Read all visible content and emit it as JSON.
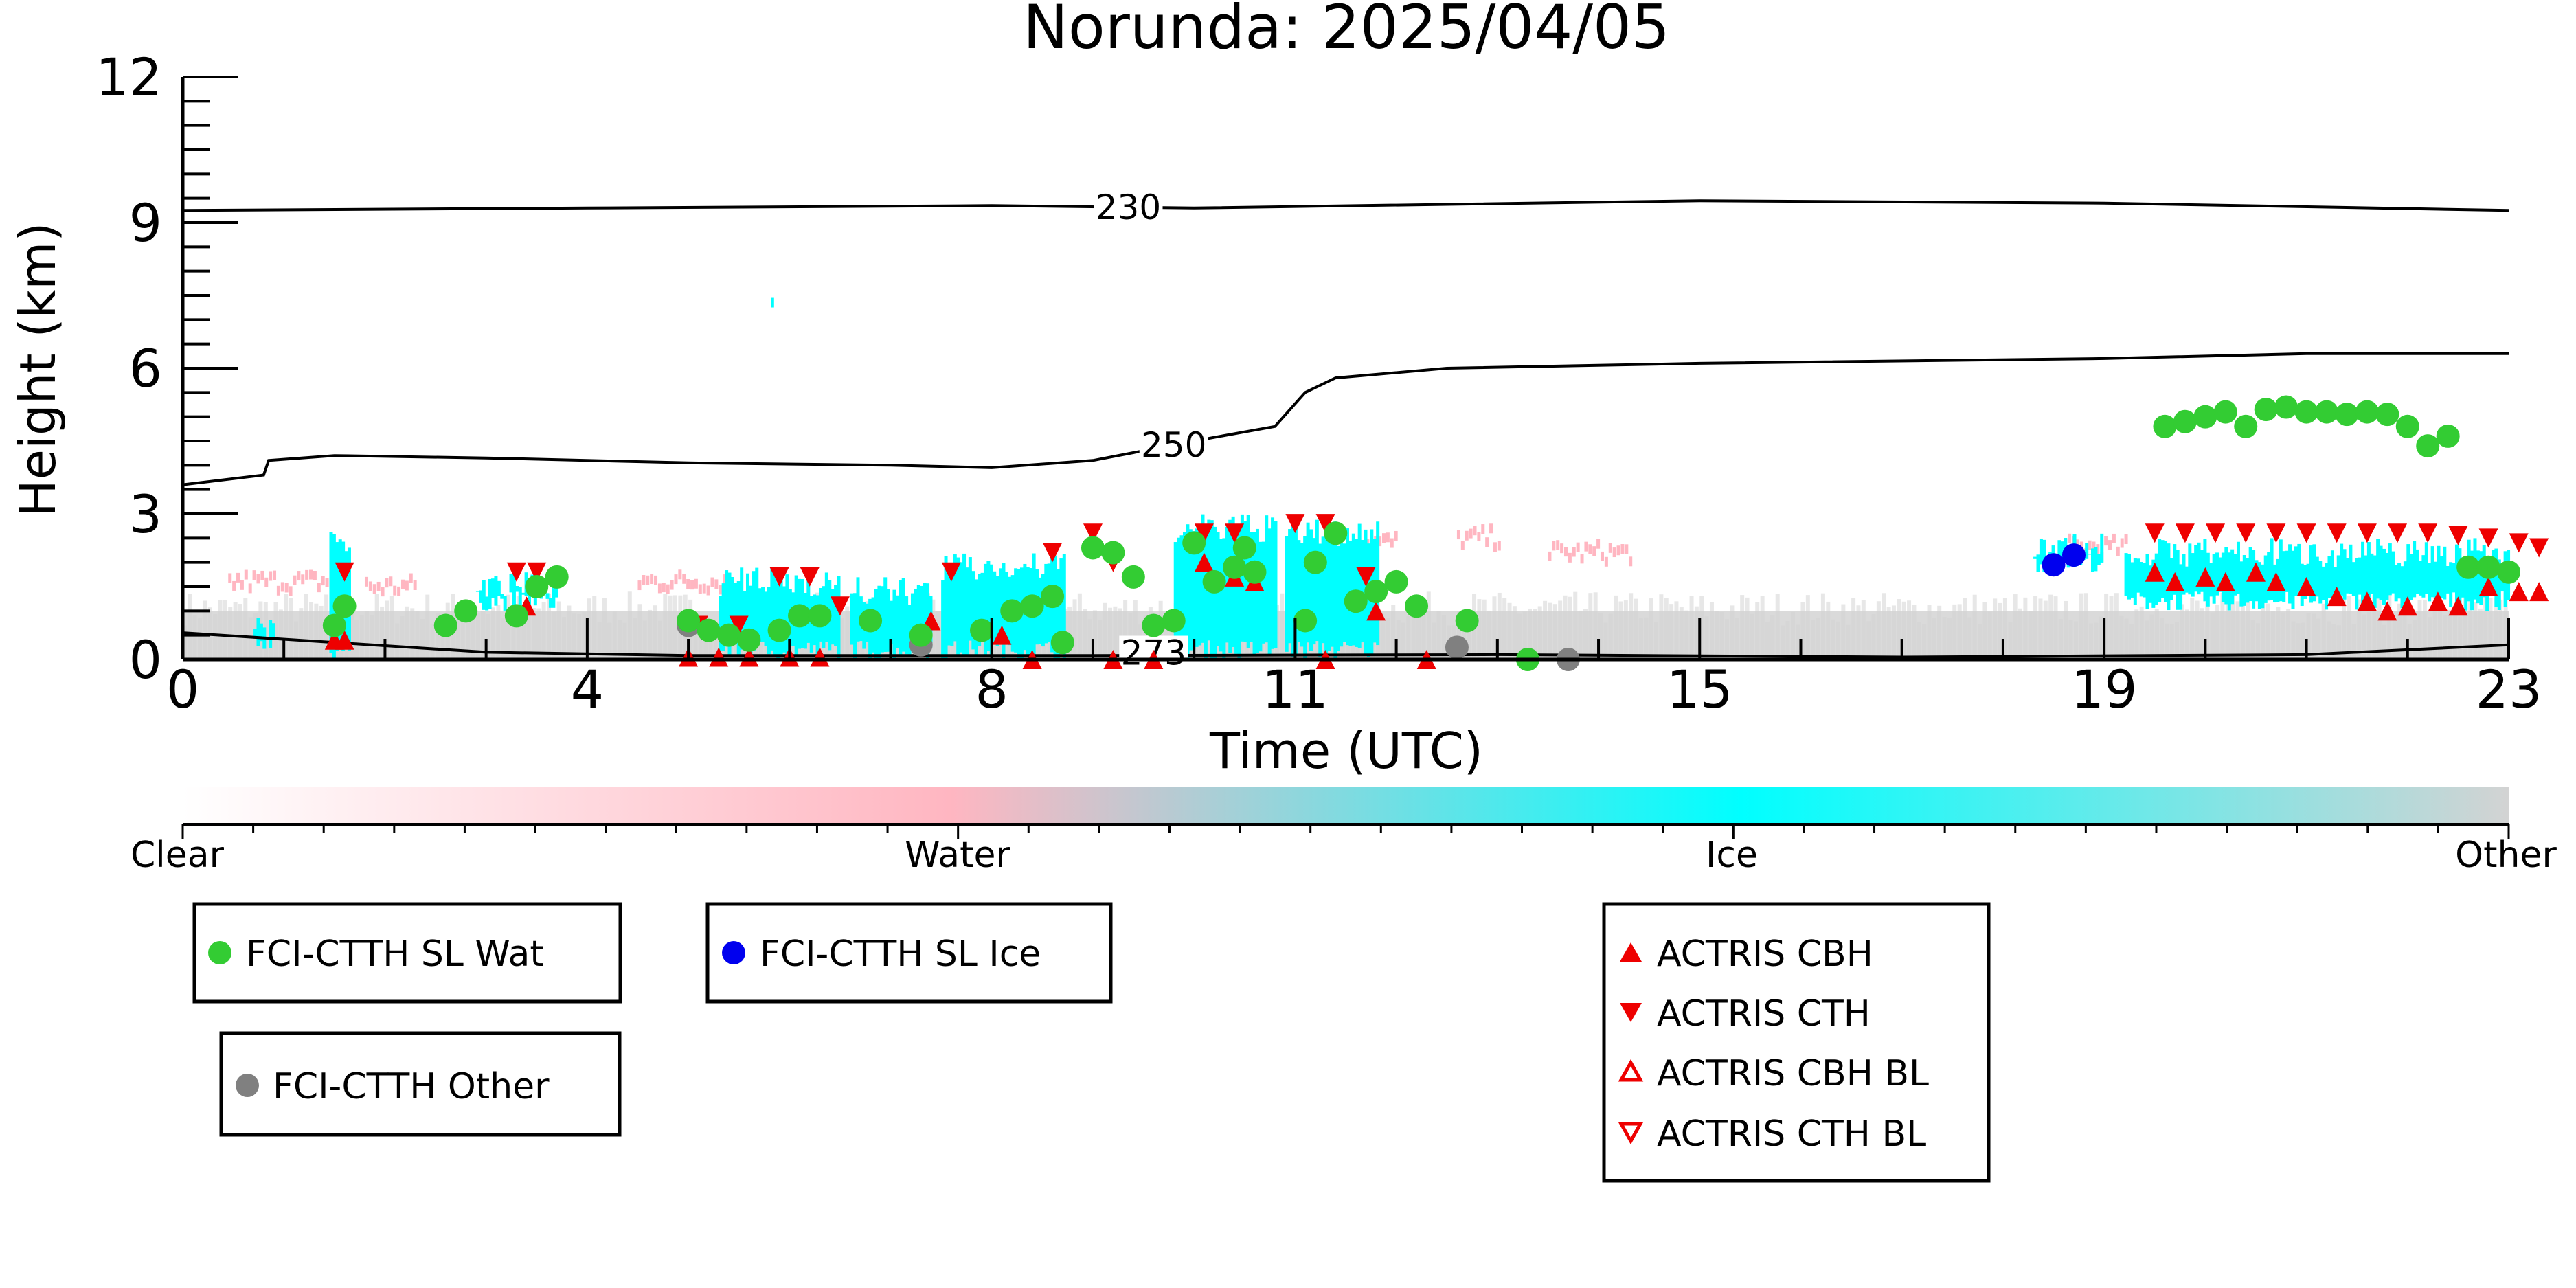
{
  "chart_data": {
    "type": "scatter",
    "title": "Norunda: 2025/04/05",
    "xlabel": "Time (UTC)",
    "ylabel": "Height (km)",
    "xlim": [
      0,
      23
    ],
    "ylim": [
      0,
      12
    ],
    "x_ticks": [
      0,
      4,
      8,
      11,
      15,
      19,
      23
    ],
    "y_ticks": [
      0,
      3,
      6,
      9,
      12
    ],
    "colorbar": {
      "labels": [
        "Clear",
        "Water",
        "Ice",
        "Other"
      ],
      "colors": {
        "Clear": "#ffffff",
        "Water": "#ffb6c1",
        "Ice": "#00ffff",
        "Other": "#d3d3d3"
      }
    },
    "contours": [
      {
        "label": "230",
        "points": [
          [
            0,
            9.25
          ],
          [
            4,
            9.3
          ],
          [
            8,
            9.35
          ],
          [
            10,
            9.3
          ],
          [
            15,
            9.45
          ],
          [
            19,
            9.4
          ],
          [
            23,
            9.25
          ]
        ]
      },
      {
        "label": "250",
        "points": [
          [
            0,
            3.6
          ],
          [
            0.8,
            3.8
          ],
          [
            0.85,
            4.1
          ],
          [
            1.5,
            4.2
          ],
          [
            3,
            4.15
          ],
          [
            5,
            4.05
          ],
          [
            7,
            4.0
          ],
          [
            8,
            3.95
          ],
          [
            9,
            4.1
          ],
          [
            10,
            4.5
          ],
          [
            10.8,
            4.8
          ],
          [
            11.1,
            5.5
          ],
          [
            11.4,
            5.8
          ],
          [
            12.5,
            6.0
          ],
          [
            15,
            6.1
          ],
          [
            19,
            6.2
          ],
          [
            21,
            6.3
          ],
          [
            23,
            6.3
          ]
        ]
      },
      {
        "label": "273",
        "points": [
          [
            0,
            0.55
          ],
          [
            1.5,
            0.35
          ],
          [
            3,
            0.15
          ],
          [
            5,
            0.08
          ],
          [
            9,
            0.08
          ],
          [
            13,
            0.1
          ],
          [
            17,
            0.05
          ],
          [
            21,
            0.1
          ],
          [
            23,
            0.3
          ]
        ]
      }
    ],
    "series": [
      {
        "name": "FCI-CTTH SL Wat",
        "color": "#33cc33",
        "points": [
          [
            1.5,
            0.7
          ],
          [
            1.6,
            1.1
          ],
          [
            2.6,
            0.7
          ],
          [
            2.8,
            1.0
          ],
          [
            3.3,
            0.9
          ],
          [
            3.5,
            1.5
          ],
          [
            3.7,
            1.7
          ],
          [
            5.0,
            0.8
          ],
          [
            5.2,
            0.6
          ],
          [
            5.4,
            0.5
          ],
          [
            5.6,
            0.4
          ],
          [
            5.9,
            0.6
          ],
          [
            6.1,
            0.9
          ],
          [
            6.3,
            0.9
          ],
          [
            6.8,
            0.8
          ],
          [
            7.3,
            0.5
          ],
          [
            7.9,
            0.6
          ],
          [
            8.2,
            1.0
          ],
          [
            8.4,
            1.1
          ],
          [
            8.6,
            1.3
          ],
          [
            8.7,
            0.35
          ],
          [
            9.0,
            2.3
          ],
          [
            9.2,
            2.2
          ],
          [
            9.4,
            1.7
          ],
          [
            9.6,
            0.7
          ],
          [
            9.8,
            0.8
          ],
          [
            10.0,
            2.4
          ],
          [
            10.2,
            1.6
          ],
          [
            10.4,
            1.9
          ],
          [
            10.5,
            2.3
          ],
          [
            10.6,
            1.8
          ],
          [
            11.1,
            0.8
          ],
          [
            11.2,
            2.0
          ],
          [
            11.4,
            2.6
          ],
          [
            11.6,
            1.2
          ],
          [
            11.8,
            1.4
          ],
          [
            12.0,
            1.6
          ],
          [
            12.2,
            1.1
          ],
          [
            12.7,
            0.8
          ],
          [
            13.3,
            0.0
          ],
          [
            19.6,
            4.8
          ],
          [
            19.8,
            4.9
          ],
          [
            20.0,
            5.0
          ],
          [
            20.2,
            5.1
          ],
          [
            20.4,
            4.8
          ],
          [
            20.6,
            5.15
          ],
          [
            20.8,
            5.2
          ],
          [
            21.0,
            5.1
          ],
          [
            21.2,
            5.1
          ],
          [
            21.4,
            5.05
          ],
          [
            21.6,
            5.1
          ],
          [
            21.8,
            5.05
          ],
          [
            22.0,
            4.8
          ],
          [
            22.2,
            4.4
          ],
          [
            22.4,
            4.6
          ],
          [
            22.6,
            1.9
          ],
          [
            22.8,
            1.9
          ],
          [
            23.0,
            1.8
          ]
        ]
      },
      {
        "name": "FCI-CTTH SL Ice",
        "color": "#0000ee",
        "points": [
          [
            18.5,
            1.95
          ],
          [
            18.7,
            2.15
          ]
        ]
      },
      {
        "name": "FCI-CTTH Other",
        "color": "#808080",
        "points": [
          [
            5.0,
            0.7
          ],
          [
            7.3,
            0.3
          ],
          [
            12.6,
            0.25
          ],
          [
            13.7,
            0.0
          ]
        ]
      },
      {
        "name": "ACTRIS CBH",
        "color": "#ee0000",
        "points": [
          [
            1.5,
            0.4
          ],
          [
            1.6,
            0.4
          ],
          [
            3.4,
            1.1
          ],
          [
            5.0,
            0.05
          ],
          [
            5.3,
            0.05
          ],
          [
            5.6,
            0.05
          ],
          [
            6.0,
            0.05
          ],
          [
            6.3,
            0.05
          ],
          [
            7.4,
            0.8
          ],
          [
            8.1,
            0.5
          ],
          [
            8.4,
            0.0
          ],
          [
            9.2,
            0.0
          ],
          [
            9.6,
            0.0
          ],
          [
            10.1,
            2.0
          ],
          [
            10.4,
            1.7
          ],
          [
            10.6,
            1.6
          ],
          [
            11.3,
            0.0
          ],
          [
            11.8,
            1.0
          ],
          [
            12.3,
            0.0
          ],
          [
            19.5,
            1.8
          ],
          [
            19.7,
            1.6
          ],
          [
            20.0,
            1.7
          ],
          [
            20.2,
            1.6
          ],
          [
            20.5,
            1.8
          ],
          [
            20.7,
            1.6
          ],
          [
            21.0,
            1.5
          ],
          [
            21.3,
            1.3
          ],
          [
            21.6,
            1.2
          ],
          [
            21.8,
            1.0
          ],
          [
            22.0,
            1.1
          ],
          [
            22.3,
            1.2
          ],
          [
            22.5,
            1.1
          ],
          [
            22.8,
            1.5
          ],
          [
            23.1,
            1.4
          ],
          [
            23.3,
            1.4
          ]
        ]
      },
      {
        "name": "ACTRIS CTH",
        "color": "#ee0000",
        "points": [
          [
            1.6,
            1.8
          ],
          [
            3.3,
            1.8
          ],
          [
            3.5,
            1.8
          ],
          [
            5.1,
            0.7
          ],
          [
            5.5,
            0.7
          ],
          [
            5.9,
            1.7
          ],
          [
            6.2,
            1.7
          ],
          [
            6.5,
            1.1
          ],
          [
            7.6,
            1.8
          ],
          [
            8.6,
            2.2
          ],
          [
            9.0,
            2.6
          ],
          [
            9.2,
            2.0
          ],
          [
            10.1,
            2.6
          ],
          [
            10.4,
            2.6
          ],
          [
            11.0,
            2.8
          ],
          [
            11.3,
            2.8
          ],
          [
            11.7,
            1.7
          ],
          [
            19.5,
            2.6
          ],
          [
            19.8,
            2.6
          ],
          [
            20.1,
            2.6
          ],
          [
            20.4,
            2.6
          ],
          [
            20.7,
            2.6
          ],
          [
            21.0,
            2.6
          ],
          [
            21.3,
            2.6
          ],
          [
            21.6,
            2.6
          ],
          [
            21.9,
            2.6
          ],
          [
            22.2,
            2.6
          ],
          [
            22.5,
            2.55
          ],
          [
            22.8,
            2.5
          ],
          [
            23.1,
            2.4
          ],
          [
            23.3,
            2.3
          ]
        ]
      },
      {
        "name": "ACTRIS CBH BL",
        "color": "#ee0000",
        "points": []
      },
      {
        "name": "ACTRIS CTH BL",
        "color": "#ee0000",
        "points": []
      }
    ]
  }
}
